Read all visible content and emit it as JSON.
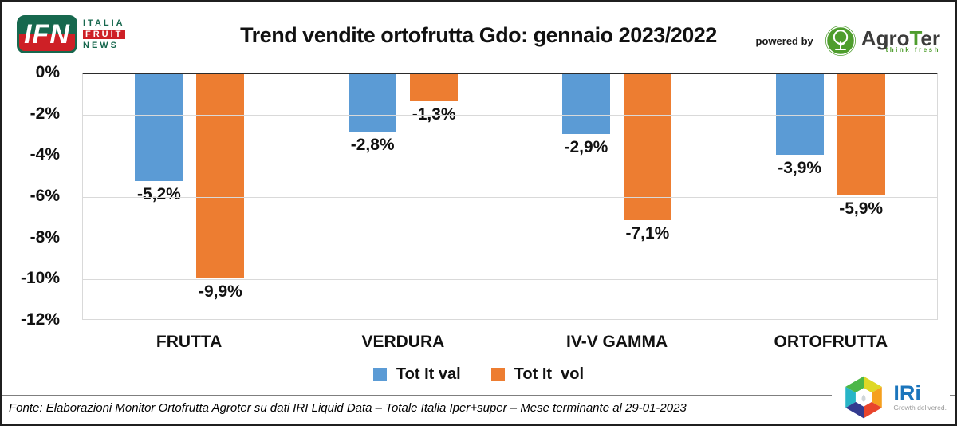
{
  "header": {
    "title": "Trend vendite ortofrutta Gdo: gennaio 2023/2022",
    "ifn": {
      "short": "IFN",
      "line1": "ITALIA",
      "line2": "FRUIT",
      "line3": "NEWS"
    },
    "powered_by": "powered by",
    "agroter": {
      "name_prefix": "Agro",
      "name_t": "T",
      "name_suffix": "er",
      "tagline": "think fresh"
    }
  },
  "chart_data": {
    "type": "bar",
    "title": "Trend vendite ortofrutta Gdo: gennaio 2023/2022",
    "categories": [
      "FRUTTA",
      "VERDURA",
      "IV-V GAMMA",
      "ORTOFRUTTA"
    ],
    "series": [
      {
        "name": "Tot It val",
        "color": "#5B9BD5",
        "values": [
          -5.2,
          -2.8,
          -2.9,
          -3.9
        ],
        "labels": [
          "-5,2%",
          "-2,8%",
          "-2,9%",
          "-3,9%"
        ]
      },
      {
        "name": "Tot It  vol",
        "color": "#ED7D31",
        "values": [
          -9.9,
          -1.3,
          -7.1,
          -5.9
        ],
        "labels": [
          "-9,9%",
          "-1,3%",
          "-7,1%",
          "-5,9%"
        ]
      }
    ],
    "y_ticks": [
      0,
      -2,
      -4,
      -6,
      -8,
      -10,
      -12
    ],
    "y_tick_labels": [
      "0%",
      "-2%",
      "-4%",
      "-6%",
      "-8%",
      "-10%",
      "-12%"
    ],
    "ylim": [
      0,
      -12
    ],
    "grid": true,
    "legend_position": "bottom",
    "xlabel": "",
    "ylabel": ""
  },
  "footer": {
    "source": "Fonte: Elaborazioni Monitor Ortofrutta Agroter su dati IRI Liquid Data – Totale Italia Iper+super – Mese terminante al 29-01-2023",
    "iri": {
      "name": "IRi",
      "tagline": "Growth delivered."
    }
  }
}
